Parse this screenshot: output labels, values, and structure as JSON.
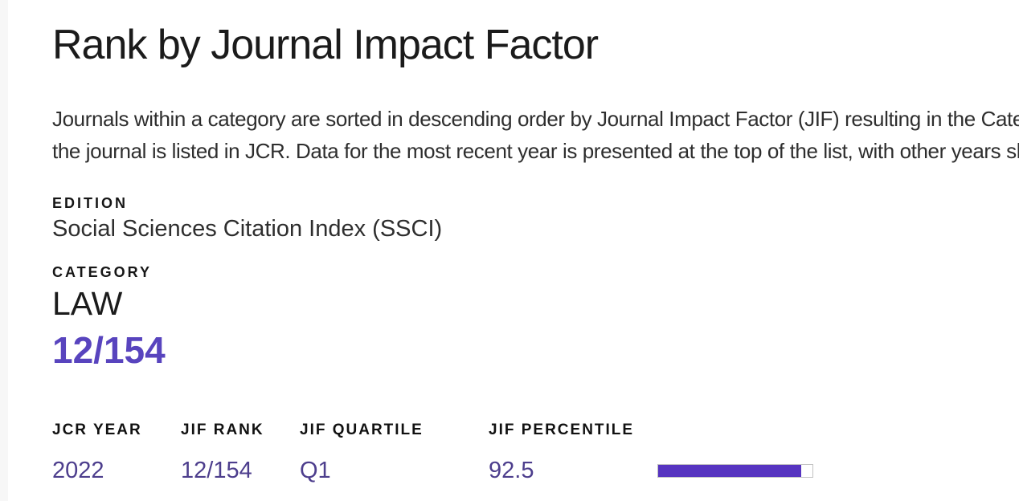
{
  "page": {
    "title": "Rank by Journal Impact Factor",
    "description_line1": "Journals within a category are sorted in descending order by Journal Impact Factor (JIF) resulting in the Category Ranking below. A separate rank is shown for each category in which",
    "description_line2": "the journal is listed in JCR. Data for the most recent year is presented at the top of the list, with other years shown in reverse chronological order."
  },
  "edition": {
    "label": "EDITION",
    "value": "Social Sciences Citation Index (SSCI)"
  },
  "category": {
    "label": "CATEGORY",
    "value": "LAW",
    "rank": "12/154"
  },
  "rank_table": {
    "headers": [
      "JCR YEAR",
      "JIF RANK",
      "JIF QUARTILE",
      "JIF PERCENTILE"
    ],
    "rows": [
      {
        "jcr_year": "2022",
        "jif_rank": "12/154",
        "jif_quartile": "Q1",
        "jif_percentile": "92.5",
        "percentile_bar_percent": 92.5
      }
    ]
  },
  "colors": {
    "accent_purple": "#5844be",
    "table_value_purple": "#4d3e8d",
    "bar_fill_purple": "#5634c0",
    "bar_border_gray": "#c2c2c2",
    "heading_black": "#1b1b1b",
    "body_text_gray": "#2e2e2e",
    "left_edge_gray": "#f7f7f7"
  }
}
